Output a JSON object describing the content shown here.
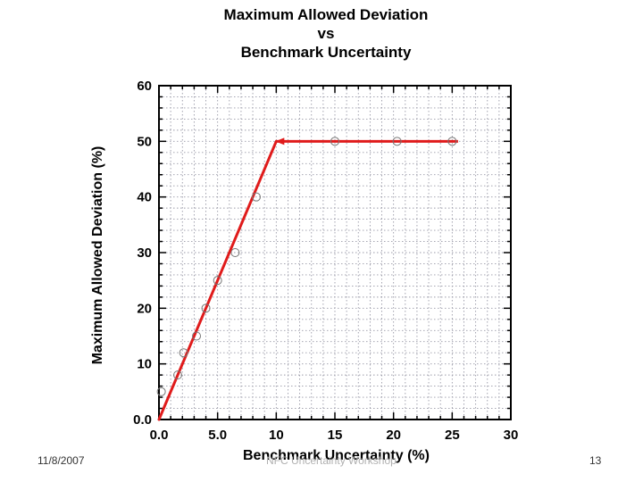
{
  "chart_data": {
    "type": "line",
    "title": [
      "Maximum Allowed Deviation",
      "vs",
      "Benchmark Uncertainty"
    ],
    "xlabel": "Benchmark Uncertainty (%)",
    "ylabel": "Maximum Allowed Deviation (%)",
    "xlim": [
      0,
      30
    ],
    "ylim": [
      0,
      60
    ],
    "x_ticks": [
      0,
      5,
      10,
      15,
      20,
      25,
      30
    ],
    "x_tick_labels": [
      "0.0",
      "5.0",
      "10",
      "15",
      "20",
      "25",
      "30"
    ],
    "y_ticks": [
      0,
      10,
      20,
      30,
      40,
      50,
      60
    ],
    "y_tick_labels": [
      "0.0",
      "10",
      "20",
      "30",
      "40",
      "50",
      "60"
    ],
    "grid": true,
    "series": [
      {
        "name": "limit",
        "style": "line",
        "color": "#e01b1b",
        "x": [
          0,
          10
        ],
        "y": [
          0,
          50
        ]
      },
      {
        "name": "plateau-arrow",
        "style": "arrow",
        "color": "#e01b1b",
        "x": [
          25.5,
          10
        ],
        "y": [
          50,
          50
        ]
      },
      {
        "name": "points",
        "style": "scatter",
        "marker": "open-circle",
        "x": [
          0.2,
          1.6,
          2.1,
          3.2,
          4.0,
          5.0,
          6.5,
          8.3,
          15.0,
          20.3,
          25.0
        ],
        "y": [
          5,
          8,
          12,
          15,
          20,
          25,
          30,
          40,
          50,
          50,
          50
        ]
      }
    ]
  },
  "footer": {
    "date": "11/8/2007",
    "center": "NFC Uncertainty Workshop",
    "page": "13"
  },
  "colors": {
    "line": "#e01b1b",
    "grid": "#9a9aa8",
    "axis": "#000000"
  }
}
